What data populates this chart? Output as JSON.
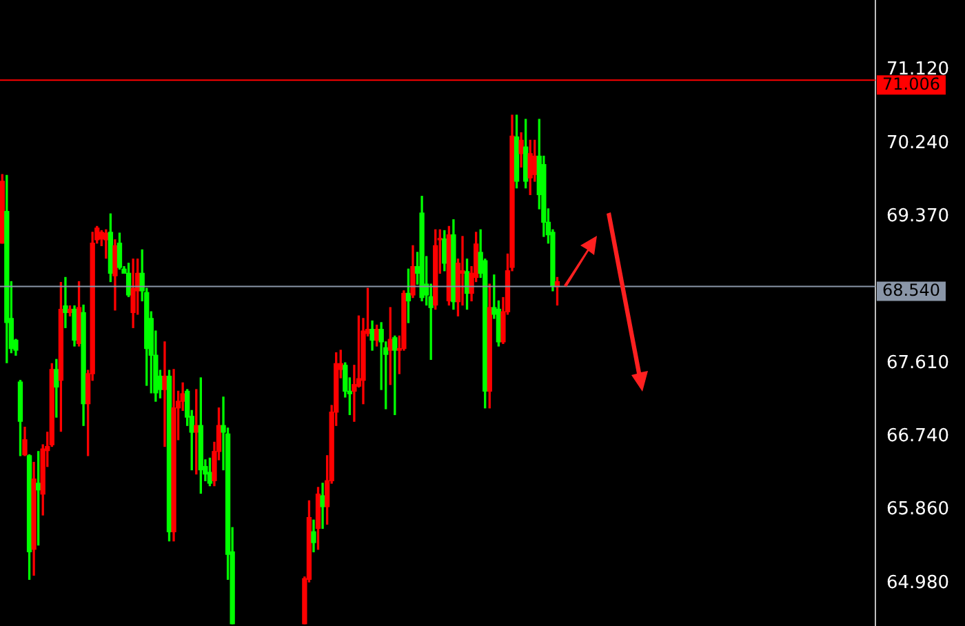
{
  "chart_data": {
    "type": "candlestick",
    "categories": [
      null,
      null,
      null,
      null,
      null,
      null,
      null,
      null,
      null,
      null,
      null,
      null,
      null,
      null,
      null,
      null,
      null,
      null,
      null,
      null,
      null,
      null,
      null,
      null,
      null,
      null,
      null,
      null,
      null,
      null,
      null,
      null,
      null,
      null,
      null,
      null,
      null,
      null,
      null,
      null,
      null,
      null,
      null,
      null,
      null,
      null,
      null,
      null,
      null,
      null,
      null,
      null,
      null,
      null,
      null,
      null,
      null,
      null,
      null,
      null,
      null,
      null,
      null,
      null,
      null,
      null,
      null,
      null,
      null,
      null,
      null,
      null,
      null,
      null,
      null,
      null,
      null,
      null,
      null,
      null,
      null,
      null,
      null,
      null,
      null,
      null,
      null,
      null,
      null,
      null,
      null,
      null,
      null,
      null,
      null,
      null,
      null,
      null,
      null,
      null,
      null,
      null,
      null,
      null,
      null,
      null,
      null,
      null,
      null,
      null,
      null,
      null,
      null,
      null,
      null,
      null,
      null,
      null,
      null,
      null,
      null,
      null,
      null,
      null,
      null,
      null,
      null,
      null,
      null,
      null,
      null,
      null,
      null,
      null,
      null,
      null,
      null,
      null,
      null,
      null,
      null,
      null,
      null,
      null,
      null,
      null,
      null,
      null,
      null,
      null,
      null,
      null,
      null,
      null,
      null,
      null,
      null,
      null,
      null,
      null,
      null,
      null,
      null,
      null,
      null,
      null,
      null,
      null,
      null,
      null,
      null,
      null,
      null,
      null,
      null,
      null,
      null,
      null,
      null,
      null,
      null,
      null,
      null,
      null,
      null,
      null,
      null,
      null,
      null,
      null,
      null,
      null,
      null,
      null
    ],
    "ohlc": [
      [
        69.05,
        69.87,
        69.05,
        69.79
      ],
      [
        69.43,
        69.86,
        67.62,
        68.1
      ],
      [
        68.15,
        68.59,
        67.74,
        67.79
      ],
      [
        67.89,
        67.9,
        67.71,
        67.77
      ],
      [
        67.39,
        67.41,
        66.51,
        66.92
      ],
      [
        66.52,
        66.85,
        66.51,
        66.7
      ],
      [
        66.51,
        66.52,
        65.03,
        65.36
      ],
      [
        65.39,
        66.43,
        65.08,
        66.23
      ],
      [
        66.18,
        66.56,
        65.44,
        66.1
      ],
      [
        66.05,
        66.64,
        65.8,
        66.59
      ],
      [
        66.57,
        66.79,
        66.38,
        66.62
      ],
      [
        66.64,
        67.61,
        66.62,
        67.54
      ],
      [
        67.54,
        67.66,
        66.97,
        67.33
      ],
      [
        67.41,
        68.58,
        66.8,
        68.26
      ],
      [
        68.3,
        68.64,
        68.04,
        68.22
      ],
      [
        68.22,
        68.3,
        68.18,
        68.26
      ],
      [
        68.26,
        68.3,
        67.82,
        67.89
      ],
      [
        67.85,
        68.59,
        67.82,
        68.28
      ],
      [
        68.22,
        68.31,
        66.87,
        67.13
      ],
      [
        67.13,
        67.53,
        66.51,
        67.49
      ],
      [
        67.49,
        69.18,
        67.41,
        69.05
      ],
      [
        69.09,
        69.25,
        69.05,
        69.23
      ],
      [
        69.1,
        69.2,
        69.02,
        69.18
      ],
      [
        69.09,
        69.21,
        68.87,
        69.17
      ],
      [
        69.18,
        69.4,
        68.59,
        68.69
      ],
      [
        68.66,
        69.09,
        68.25,
        69.02
      ],
      [
        69.05,
        69.17,
        68.74,
        68.76
      ],
      [
        68.74,
        68.77,
        68.69,
        68.69
      ],
      [
        68.69,
        68.81,
        68.41,
        68.43
      ],
      [
        68.22,
        68.86,
        68.04,
        68.51
      ],
      [
        68.48,
        68.86,
        68.2,
        68.69
      ],
      [
        68.69,
        68.97,
        68.36,
        68.48
      ],
      [
        68.46,
        68.51,
        67.35,
        67.79
      ],
      [
        68.15,
        68.23,
        67.26,
        67.71
      ],
      [
        67.71,
        68.0,
        67.16,
        67.26
      ],
      [
        67.46,
        67.53,
        67.2,
        67.3
      ],
      [
        67.3,
        67.87,
        66.62,
        67.46
      ],
      [
        67.46,
        67.53,
        65.49,
        65.6
      ],
      [
        65.6,
        67.54,
        65.49,
        67.08
      ],
      [
        67.08,
        67.28,
        66.7,
        67.16
      ],
      [
        67.16,
        67.38,
        67.05,
        67.25
      ],
      [
        67.28,
        67.3,
        66.87,
        66.97
      ],
      [
        66.98,
        67.05,
        66.34,
        66.79
      ],
      [
        66.79,
        67.3,
        66.29,
        66.87
      ],
      [
        66.87,
        67.44,
        66.06,
        66.34
      ],
      [
        66.38,
        66.46,
        66.21,
        66.29
      ],
      [
        66.31,
        66.48,
        66.15,
        66.18
      ],
      [
        66.21,
        66.67,
        66.15,
        66.56
      ],
      [
        66.56,
        67.08,
        66.46,
        66.87
      ],
      [
        66.87,
        67.21,
        66.34,
        66.79
      ],
      [
        66.77,
        66.84,
        65.03,
        65.33
      ],
      [
        65.36,
        65.65,
        64.5,
        64.5
      ],
      null,
      null,
      null,
      null,
      null,
      null,
      null,
      null,
      null,
      null,
      null,
      null,
      null,
      null,
      null,
      [
        64.5,
        65.06,
        64.5,
        65.04
      ],
      [
        65.03,
        65.97,
        65.0,
        65.77
      ],
      [
        65.6,
        65.74,
        65.36,
        65.47
      ],
      [
        65.64,
        66.13,
        65.39,
        66.05
      ],
      [
        66.03,
        66.18,
        65.64,
        65.9
      ],
      [
        65.9,
        66.51,
        65.69,
        66.21
      ],
      [
        66.21,
        67.11,
        66.18,
        67.03
      ],
      [
        67.03,
        67.74,
        66.87,
        67.61
      ],
      [
        67.54,
        67.77,
        67.44,
        67.61
      ],
      [
        67.59,
        67.62,
        67.21,
        67.28
      ],
      [
        67.28,
        67.44,
        67.0,
        67.25
      ],
      [
        67.28,
        67.59,
        66.92,
        67.36
      ],
      [
        67.34,
        68.18,
        67.33,
        67.43
      ],
      [
        67.41,
        68.15,
        67.13,
        68.0
      ],
      [
        67.97,
        68.51,
        67.94,
        68.02
      ],
      [
        68.02,
        68.12,
        67.77,
        67.89
      ],
      [
        67.89,
        68.07,
        67.82,
        68.02
      ],
      [
        68.02,
        68.1,
        67.3,
        67.87
      ],
      [
        67.8,
        67.87,
        67.07,
        67.72
      ],
      [
        67.77,
        68.28,
        67.36,
        67.9
      ],
      [
        67.92,
        67.94,
        67.0,
        67.77
      ],
      [
        67.77,
        67.94,
        67.49,
        67.79
      ],
      [
        67.79,
        68.48,
        67.77,
        68.45
      ],
      [
        68.45,
        68.74,
        68.1,
        68.36
      ],
      [
        68.43,
        69.02,
        68.4,
        68.77
      ],
      [
        68.77,
        68.94,
        68.56,
        68.69
      ],
      [
        69.41,
        69.61,
        68.36,
        68.4
      ],
      [
        68.56,
        68.89,
        68.31,
        68.43
      ],
      [
        68.41,
        68.56,
        67.66,
        68.28
      ],
      [
        68.31,
        69.21,
        68.26,
        69.02
      ],
      [
        69.09,
        69.21,
        68.69,
        69.1
      ],
      [
        69.1,
        69.2,
        68.72,
        68.81
      ],
      [
        68.36,
        69.25,
        68.31,
        69.15
      ],
      [
        69.15,
        69.33,
        68.26,
        68.35
      ],
      [
        68.35,
        68.86,
        68.18,
        68.81
      ],
      [
        68.69,
        69.13,
        68.31,
        68.72
      ],
      [
        68.71,
        68.86,
        68.26,
        68.45
      ],
      [
        68.45,
        68.77,
        68.36,
        68.69
      ],
      [
        68.64,
        69.18,
        68.59,
        69.04
      ],
      [
        68.94,
        69.21,
        68.64,
        68.69
      ],
      [
        68.84,
        68.86,
        67.08,
        67.28
      ],
      [
        67.28,
        68.56,
        67.08,
        68.28
      ],
      [
        68.28,
        68.67,
        68.15,
        68.2
      ],
      [
        68.26,
        68.36,
        67.82,
        67.87
      ],
      [
        67.87,
        68.4,
        67.85,
        68.23
      ],
      [
        68.23,
        68.92,
        68.2,
        68.72
      ],
      [
        68.76,
        70.58,
        68.72,
        70.33
      ],
      [
        70.32,
        70.58,
        69.71,
        69.79
      ],
      [
        70.12,
        70.37,
        69.96,
        70.28
      ],
      [
        70.2,
        70.53,
        69.71,
        69.79
      ],
      [
        69.83,
        70.28,
        69.63,
        70.12
      ],
      [
        69.87,
        70.28,
        69.79,
        70.09
      ],
      [
        70.09,
        70.53,
        69.46,
        69.63
      ],
      [
        69.99,
        70.09,
        69.13,
        69.3
      ],
      [
        69.3,
        69.46,
        69.05,
        69.15
      ],
      [
        69.18,
        69.21,
        68.48,
        68.54
      ],
      [
        68.53,
        68.64,
        68.31,
        68.59
      ],
      null,
      null,
      null,
      null,
      null,
      null,
      null,
      null,
      null,
      null,
      null,
      null,
      null,
      null,
      null,
      null,
      null,
      null,
      null,
      null,
      null,
      null,
      null,
      null,
      null,
      null,
      null,
      null,
      null,
      null,
      null,
      null,
      null,
      null,
      null,
      null,
      null,
      null,
      null,
      null,
      null,
      null,
      null,
      null,
      null,
      null,
      null,
      null,
      null,
      null,
      null,
      null,
      null,
      null,
      null,
      null,
      null,
      null,
      null,
      null,
      null,
      null,
      null,
      null,
      null,
      null,
      null,
      null,
      null,
      null
    ],
    "colors": [
      "#ff0000",
      "#00ff00",
      "#00ff00",
      "#00ff00",
      "#00ff00",
      "#ff0000",
      "#00ff00",
      "#ff0000",
      "#00ff00",
      "#ff0000",
      "#ff0000",
      "#ff0000",
      "#00ff00",
      "#ff0000",
      "#00ff00",
      "#ff0000",
      "#00ff00",
      "#ff0000",
      "#00ff00",
      "#ff0000",
      "#ff0000",
      "#ff0000",
      "#ff0000",
      "#ff0000",
      "#00ff00",
      "#ff0000",
      "#00ff00",
      "#00ff00",
      "#00ff00",
      "#ff0000",
      "#ff0000",
      "#00ff00",
      "#00ff00",
      "#00ff00",
      "#00ff00",
      "#00ff00",
      "#ff0000",
      "#00ff00",
      "#ff0000",
      "#ff0000",
      "#ff0000",
      "#00ff00",
      "#00ff00",
      "#ff0000",
      "#00ff00",
      "#00ff00",
      "#00ff00",
      "#ff0000",
      "#ff0000",
      "#00ff00",
      "#00ff00",
      "#00ff00",
      null,
      null,
      null,
      null,
      null,
      null,
      null,
      null,
      null,
      null,
      null,
      null,
      null,
      null,
      null,
      "#ff0000",
      "#ff0000",
      "#00ff00",
      "#ff0000",
      "#00ff00",
      "#ff0000",
      "#ff0000",
      "#ff0000",
      "#ff0000",
      "#00ff00",
      "#00ff00",
      "#ff0000",
      "#ff0000",
      "#ff0000",
      "#ff0000",
      "#00ff00",
      "#ff0000",
      "#00ff00",
      "#00ff00",
      "#ff0000",
      "#00ff00",
      "#ff0000",
      "#ff0000",
      "#00ff00",
      "#ff0000",
      "#00ff00",
      "#00ff00",
      "#00ff00",
      "#00ff00",
      "#ff0000",
      "#ff0000",
      "#00ff00",
      "#ff0000",
      "#00ff00",
      "#ff0000",
      "#ff0000",
      "#00ff00",
      "#ff0000",
      "#ff0000",
      "#00ff00",
      "#00ff00",
      "#ff0000",
      "#00ff00",
      "#00ff00",
      "#ff0000",
      "#ff0000",
      "#ff0000",
      "#00ff00",
      "#ff0000",
      "#00ff00",
      "#ff0000",
      "#ff0000",
      "#00ff00",
      "#00ff00",
      "#00ff00",
      "#00ff00",
      "#ff0000",
      null,
      null,
      null,
      null,
      null,
      null,
      null,
      null,
      null,
      null,
      null,
      null,
      null,
      null,
      null,
      null,
      null,
      null,
      null,
      null,
      null,
      null,
      null,
      null,
      null,
      null,
      null,
      null,
      null,
      null,
      null,
      null,
      null,
      null,
      null,
      null,
      null,
      null,
      null,
      null,
      null,
      null,
      null,
      null,
      null,
      null,
      null,
      null,
      null,
      null,
      null,
      null,
      null,
      null,
      null,
      null,
      null,
      null,
      null,
      null,
      null,
      null,
      null,
      null,
      null,
      null,
      null,
      null,
      null,
      null
    ],
    "ylim": [
      64.47,
      71.96
    ],
    "yticks": [
      {
        "value": 64.98,
        "label": "64.980"
      },
      {
        "value": 65.86,
        "label": "65.860"
      },
      {
        "value": 66.74,
        "label": "66.740"
      },
      {
        "value": 67.61,
        "label": "67.610"
      },
      {
        "value": 69.37,
        "label": "69.370"
      },
      {
        "value": 70.24,
        "label": "70.240"
      },
      {
        "value": 71.12,
        "label": "71.120"
      }
    ],
    "ref_lines": [
      {
        "axis": "y",
        "value": 71.006,
        "label": "71.006",
        "color": "#ff0000"
      },
      {
        "axis": "y",
        "value": 68.54,
        "label": "68.540",
        "color": "#8a96a8"
      }
    ],
    "tick_labels": "y",
    "legend": false
  }
}
